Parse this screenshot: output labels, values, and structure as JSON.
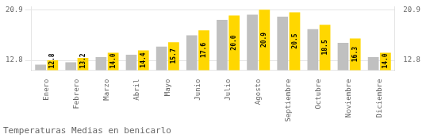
{
  "chart_data": {
    "type": "bar",
    "title": "Temperaturas Medias en benicarlo",
    "categories": [
      "Enero",
      "Febrero",
      "Marzo",
      "Abril",
      "Mayo",
      "Junio",
      "Julio",
      "Agosto",
      "Septiembre",
      "Octubre",
      "Noviembre",
      "Diciembre"
    ],
    "series": [
      {
        "color": "#C0C0C0",
        "values": [
          12.1,
          12.5,
          13.3,
          13.7,
          15.0,
          16.8,
          19.3,
          20.1,
          19.8,
          17.8,
          15.6,
          13.3
        ]
      },
      {
        "color": "#FFD700",
        "values": [
          12.8,
          13.2,
          14.0,
          14.4,
          15.7,
          17.6,
          20.0,
          20.9,
          20.5,
          18.5,
          16.3,
          14.0
        ],
        "value_labels": [
          "12.8",
          "13.2",
          "14.0",
          "14.4",
          "15.7",
          "17.6",
          "20.0",
          "20.9",
          "20.5",
          "18.5",
          "16.3",
          "14.0"
        ],
        "data_labels": true
      }
    ],
    "ylim": [
      11.2,
      21.4
    ],
    "yticks": [
      12.8,
      20.9
    ],
    "y2lim": [
      11.2,
      21.4
    ],
    "y2ticks": [
      12.8,
      20.9
    ],
    "grid": true
  }
}
